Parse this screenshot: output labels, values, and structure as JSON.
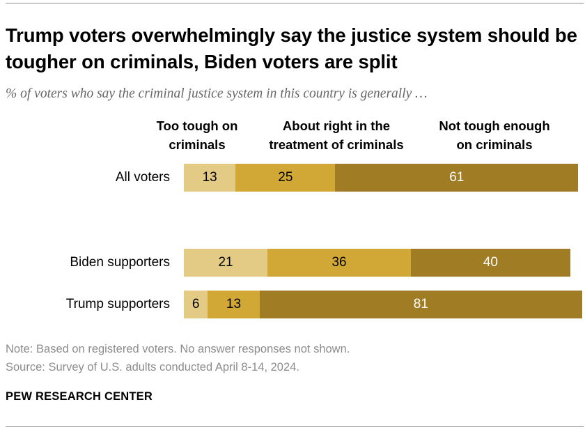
{
  "title": "Trump voters overwhelmingly say the justice system should be tougher on criminals, Biden voters are split",
  "subtitle": "% of voters who say the criminal justice system in this country is generally …",
  "colors": {
    "too_tough": "#e3cb86",
    "about_right": "#d1a835",
    "not_tough": "#a07d25"
  },
  "chart_data": {
    "type": "bar",
    "orientation": "horizontal",
    "stacked": true,
    "title": "Trump voters overwhelmingly say the justice system should be tougher on criminals, Biden voters are split",
    "subtitle": "% of voters who say the criminal justice system in this country is generally …",
    "categories": [
      "All voters",
      "Biden supporters",
      "Trump supporters"
    ],
    "series": [
      {
        "name": "Too tough on criminals",
        "values": [
          13,
          21,
          6
        ]
      },
      {
        "name": "About right in the treatment of criminals",
        "values": [
          25,
          36,
          13
        ]
      },
      {
        "name": "Not tough enough on criminals",
        "values": [
          61,
          40,
          81
        ]
      }
    ],
    "legend": [
      {
        "line1": "Too tough on",
        "line2": "criminals"
      },
      {
        "line1": "About right in the",
        "line2": "treatment of criminals"
      },
      {
        "line1": "Not tough enough",
        "line2": "on criminals"
      }
    ],
    "xlim": [
      0,
      100
    ],
    "legend_position": "top"
  },
  "footer": {
    "note": "Note: Based on registered voters. No answer responses not shown.",
    "source": "Source: Survey of U.S. adults conducted April 8-14, 2024.",
    "brand": "PEW RESEARCH CENTER"
  }
}
